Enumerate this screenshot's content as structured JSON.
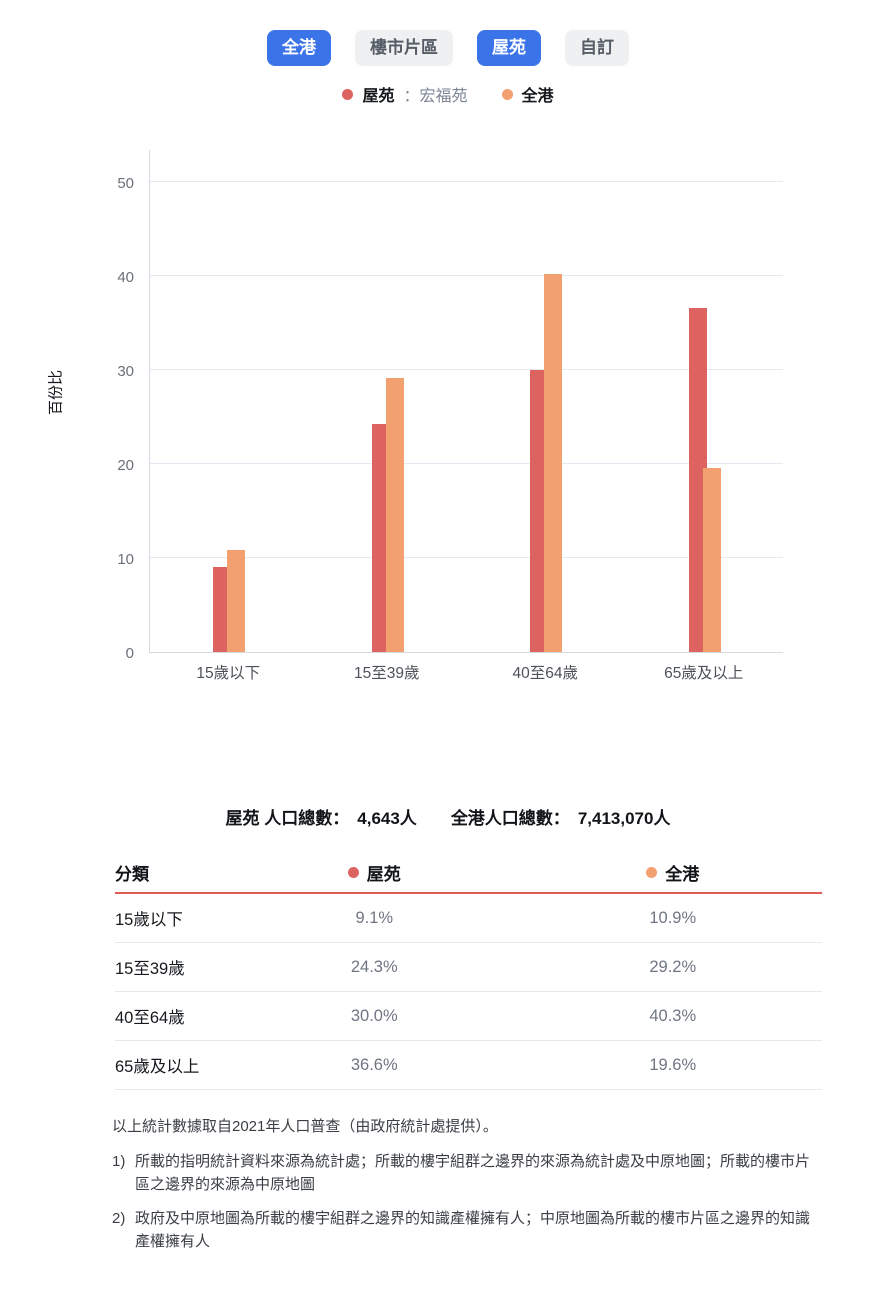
{
  "tabs": {
    "items": [
      {
        "label": "全港",
        "active": true
      },
      {
        "label": "樓市片區",
        "active": false
      },
      {
        "label": "屋苑",
        "active": true
      },
      {
        "label": "自訂",
        "active": false
      }
    ]
  },
  "legend": {
    "estate_label": "屋苑",
    "estate_name": "：宏福苑",
    "hk_label": "全港"
  },
  "chart_data": {
    "type": "bar",
    "categories": [
      "15歲以下",
      "15至39歲",
      "40至64歲",
      "65歲及以上"
    ],
    "series": [
      {
        "name": "屋苑",
        "color": "#dd6361",
        "values": [
          9.1,
          24.3,
          30.0,
          36.6
        ]
      },
      {
        "name": "全港",
        "color": "#f2a06f",
        "values": [
          10.9,
          29.2,
          40.3,
          19.6
        ]
      }
    ],
    "title": "",
    "xlabel": "",
    "ylabel": "百份比",
    "yticks": [
      0,
      10,
      20,
      30,
      40,
      50
    ],
    "ylim": [
      0,
      53.5
    ],
    "grid": true,
    "legend_position": "top",
    "unit": "%"
  },
  "totals": {
    "estate_label": "屋苑 人口總數：",
    "estate_value": "4,643人",
    "hk_label": "全港人口總數：",
    "hk_value": "7,413,070人"
  },
  "table": {
    "col_category": "分類",
    "col_estate": "屋苑",
    "col_hk": "全港",
    "rows": [
      {
        "category": "15歲以下",
        "estate": "9.1%",
        "hk": "10.9%"
      },
      {
        "category": "15至39歲",
        "estate": "24.3%",
        "hk": "29.2%"
      },
      {
        "category": "40至64歲",
        "estate": "30.0%",
        "hk": "40.3%"
      },
      {
        "category": "65歲及以上",
        "estate": "36.6%",
        "hk": "19.6%"
      }
    ]
  },
  "footnotes": {
    "source": "以上統計數據取自2021年人口普查（由政府統計處提供）。",
    "notes": [
      {
        "marker": "1)",
        "text": "所載的指明統計資料來源為統計處；所載的樓宇組群之邊界的來源為統計處及中原地圖；所載的樓市片區之邊界的來源為中原地圖"
      },
      {
        "marker": "2)",
        "text": "政府及中原地圖為所載的樓宇組群之邊界的知識產權擁有人；中原地圖為所載的樓市片區之邊界的知識產權擁有人"
      }
    ]
  },
  "colors": {
    "estate_series": "#dd6361",
    "hk_series": "#f2a06f",
    "active_tab": "#3b73e8",
    "table_header_underline": "#e25a56"
  }
}
